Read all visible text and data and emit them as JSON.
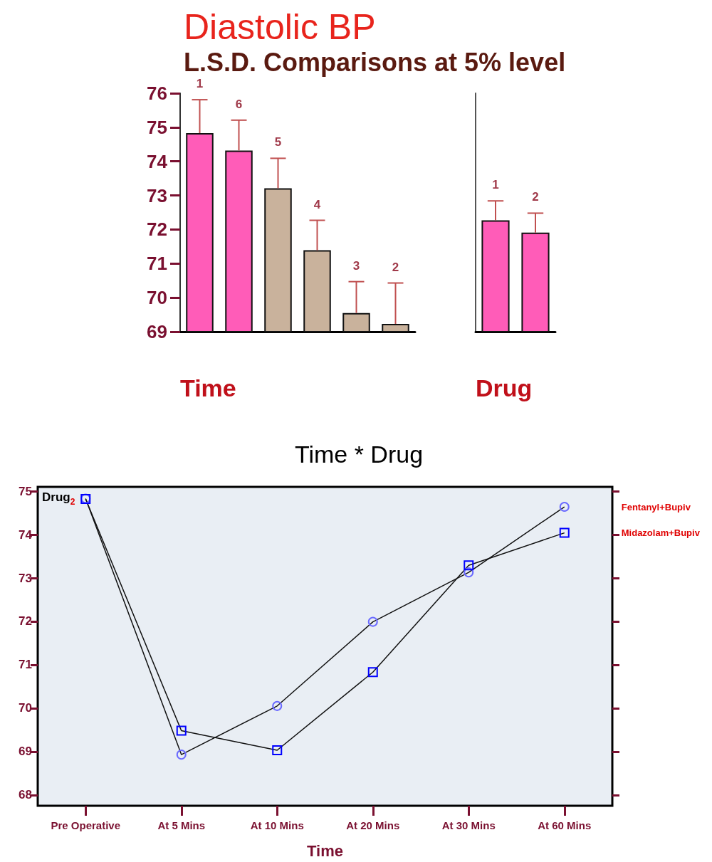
{
  "chart_data": [
    {
      "type": "bar",
      "title": "Diastolic BP",
      "subtitle": "L.S.D. Comparisons at 5% level",
      "xlabel": "Time",
      "categories": [
        "1",
        "6",
        "5",
        "4",
        "3",
        "2"
      ],
      "values": [
        74.83,
        74.32,
        73.21,
        71.39,
        69.55,
        69.23
      ],
      "colors": [
        "#ff5cb8",
        "#ff5cb8",
        "#c9b29c",
        "#c9b29c",
        "#c9b29c",
        "#c9b29c"
      ],
      "errors": [
        [
          74.83,
          75.81
        ],
        [
          74.32,
          75.21
        ],
        [
          73.21,
          74.09
        ],
        [
          71.39,
          72.27
        ],
        [
          69.55,
          70.47
        ],
        [
          69.23,
          70.43
        ]
      ],
      "ylim": [
        69,
        76
      ],
      "yticks": [
        69,
        70,
        71,
        72,
        73,
        74,
        75,
        76
      ],
      "grid": false
    },
    {
      "type": "bar",
      "xlabel": "Drug",
      "categories": [
        "1",
        "2"
      ],
      "values": [
        72.27,
        71.91
      ],
      "colors": [
        "#ff5cb8",
        "#ff5cb8"
      ],
      "errors": [
        [
          72.27,
          72.84
        ],
        [
          71.91,
          72.48
        ]
      ],
      "ylim": [
        69,
        76
      ],
      "tick_labels": "x",
      "grid": false
    },
    {
      "type": "line",
      "title": "Time * Drug",
      "xlabel": "Time",
      "legend_title": "Drug$_{2}$",
      "categories": [
        "Pre Operative",
        "At 5 Mins",
        "At 10 Mins",
        "At 20 Mins",
        "At 30 Mins",
        "At 60 Mins"
      ],
      "series": [
        {
          "name": "Fentanyl+Bupiv",
          "color": "#6a6aff",
          "marker": "circle",
          "values": [
            74.83,
            68.93,
            70.05,
            71.99,
            73.13,
            74.64
          ]
        },
        {
          "name": "Midazolam+Bupiv",
          "color": "#0000ff",
          "marker": "square",
          "values": [
            74.82,
            69.48,
            69.03,
            70.83,
            73.29,
            74.04
          ]
        }
      ],
      "ylim": [
        67.75,
        75.1
      ],
      "yticks": [
        68,
        69,
        70,
        71,
        72,
        73,
        74,
        75
      ],
      "grid": false,
      "line_style": "solid"
    }
  ]
}
